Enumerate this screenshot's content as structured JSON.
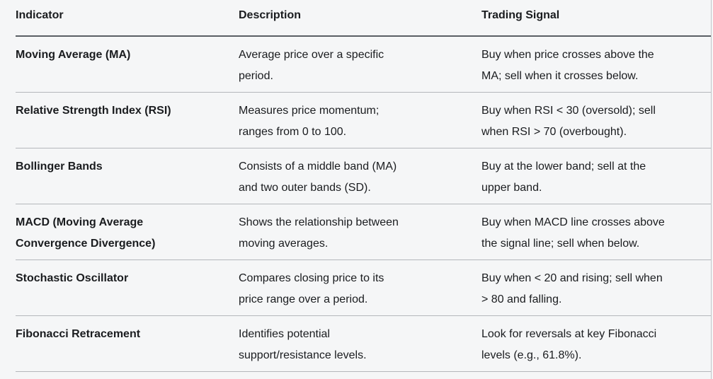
{
  "colors": {
    "background": "#f5f6f7",
    "text": "#1a1c1f",
    "header_divider": "#5a5e64",
    "row_divider": "#b4b7bb",
    "right_border": "#c3c6c9"
  },
  "table": {
    "columns": [
      {
        "label": "Indicator"
      },
      {
        "label": "Description"
      },
      {
        "label": "Trading Signal"
      }
    ],
    "rows": [
      {
        "indicator": "Moving Average (MA)",
        "description": "Average price over a specific\nperiod.",
        "signal": "Buy when price crosses above the\nMA; sell when it crosses below."
      },
      {
        "indicator": "Relative Strength Index (RSI)",
        "description": "Measures price momentum;\nranges from 0 to 100.",
        "signal": "Buy when RSI < 30 (oversold); sell\nwhen RSI > 70 (overbought)."
      },
      {
        "indicator": "Bollinger Bands",
        "description": "Consists of a middle band (MA)\nand two outer bands (SD).",
        "signal": "Buy at the lower band; sell at the\nupper band."
      },
      {
        "indicator": "MACD (Moving Average\nConvergence Divergence)",
        "description": "Shows the relationship between\nmoving averages.",
        "signal": "Buy when MACD line crosses above\nthe signal line; sell when below."
      },
      {
        "indicator": "Stochastic Oscillator",
        "description": "Compares closing price to its\nprice range over a period.",
        "signal": "Buy when < 20 and rising; sell when\n> 80 and falling."
      },
      {
        "indicator": "Fibonacci Retracement",
        "description": "Identifies potential\nsupport/resistance levels.",
        "signal": "Look for reversals at key Fibonacci\nlevels (e.g., 61.8%)."
      }
    ]
  }
}
